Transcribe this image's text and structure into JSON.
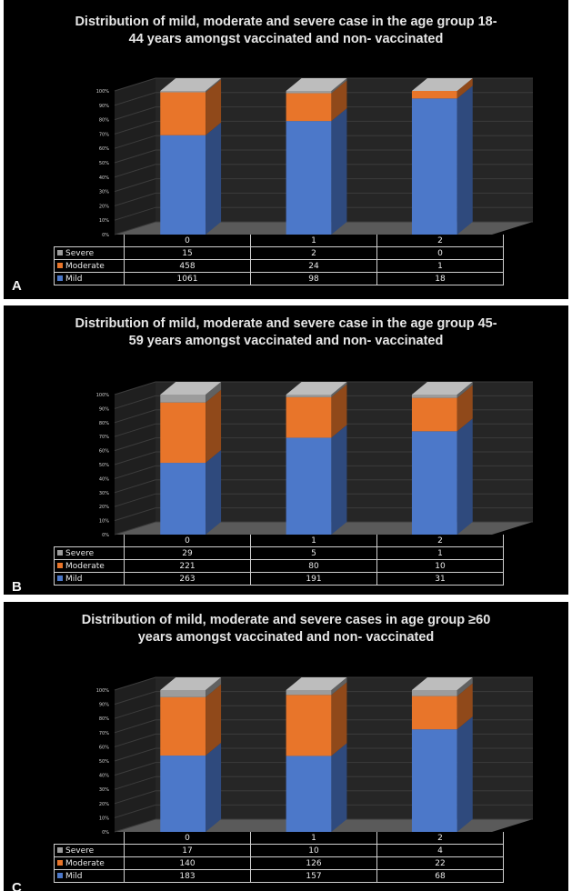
{
  "colors": {
    "mild": "#4c78c9",
    "moderate": "#e8752a",
    "severe": "#9c9c9c"
  },
  "series_labels": {
    "severe": "Severe",
    "moderate": "Moderate",
    "mild": "Mild"
  },
  "chart_data": [
    {
      "type": "bar",
      "stacked": "percent",
      "panel_letter": "A",
      "title": "Distribution of mild, moderate and severe case in the age group 18-\n44 years amongst vaccinated and non- vaccinated",
      "categories": [
        "0",
        "1",
        "2"
      ],
      "yticks": [
        "0%",
        "10%",
        "20%",
        "30%",
        "40%",
        "50%",
        "60%",
        "70%",
        "80%",
        "90%",
        "100%"
      ],
      "series": [
        {
          "name": "Severe",
          "values": [
            15,
            2,
            0
          ]
        },
        {
          "name": "Moderate",
          "values": [
            458,
            24,
            1
          ]
        },
        {
          "name": "Mild",
          "values": [
            1061,
            98,
            18
          ]
        }
      ]
    },
    {
      "type": "bar",
      "stacked": "percent",
      "panel_letter": "B",
      "title": "Distribution of mild, moderate and severe case in the age group 45-\n59 years amongst vaccinated and non- vaccinated",
      "categories": [
        "0",
        "1",
        "2"
      ],
      "yticks": [
        "0%",
        "10%",
        "20%",
        "30%",
        "40%",
        "50%",
        "60%",
        "70%",
        "80%",
        "90%",
        "100%"
      ],
      "series": [
        {
          "name": "Severe",
          "values": [
            29,
            5,
            1
          ]
        },
        {
          "name": "Moderate",
          "values": [
            221,
            80,
            10
          ]
        },
        {
          "name": "Mild",
          "values": [
            263,
            191,
            31
          ]
        }
      ]
    },
    {
      "type": "bar",
      "stacked": "percent",
      "panel_letter": "C",
      "title": "Distribution of mild, moderate and severe cases in age group ≥60\nyears amongst vaccinated and non- vaccinated",
      "categories": [
        "0",
        "1",
        "2"
      ],
      "yticks": [
        "0%",
        "10%",
        "20%",
        "30%",
        "40%",
        "50%",
        "60%",
        "70%",
        "80%",
        "90%",
        "100%"
      ],
      "series": [
        {
          "name": "Severe",
          "values": [
            17,
            10,
            4
          ]
        },
        {
          "name": "Moderate",
          "values": [
            140,
            126,
            22
          ]
        },
        {
          "name": "Mild",
          "values": [
            183,
            157,
            68
          ]
        }
      ]
    }
  ]
}
